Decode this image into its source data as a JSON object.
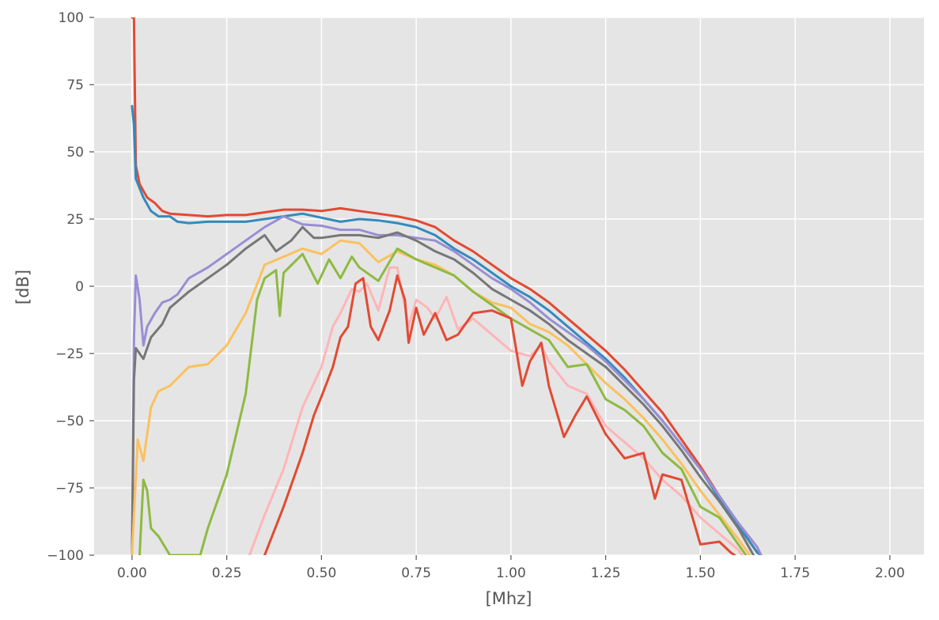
{
  "chart_data": {
    "type": "line",
    "title": "",
    "xlabel": "[Mhz]",
    "ylabel": "[dB]",
    "xlim": [
      -0.1,
      2.09
    ],
    "ylim": [
      -100,
      100
    ],
    "x_ticks": [
      0.0,
      0.25,
      0.5,
      0.75,
      1.0,
      1.25,
      1.5,
      1.75,
      2.0
    ],
    "x_tick_labels": [
      "0.00",
      "0.25",
      "0.50",
      "0.75",
      "1.00",
      "1.25",
      "1.50",
      "1.75",
      "2.00"
    ],
    "y_ticks": [
      -100,
      -75,
      -50,
      -25,
      0,
      25,
      50,
      75,
      100
    ],
    "y_tick_labels": [
      "−100",
      "−75",
      "−50",
      "−25",
      "0",
      "25",
      "50",
      "75",
      "100"
    ],
    "grid": true,
    "background": "#e5e5e5",
    "grid_color": "#ffffff",
    "legend": "none",
    "series": [
      {
        "color": "#e24a33",
        "points": [
          [
            0.0,
            100
          ],
          [
            0.005,
            100
          ],
          [
            0.01,
            45
          ],
          [
            0.02,
            38
          ],
          [
            0.04,
            33
          ],
          [
            0.06,
            31
          ],
          [
            0.08,
            28
          ],
          [
            0.1,
            27
          ],
          [
            0.15,
            26.5
          ],
          [
            0.2,
            26
          ],
          [
            0.25,
            26.5
          ],
          [
            0.3,
            26.5
          ],
          [
            0.35,
            27.5
          ],
          [
            0.4,
            28.5
          ],
          [
            0.45,
            28.5
          ],
          [
            0.5,
            28
          ],
          [
            0.55,
            29
          ],
          [
            0.6,
            28
          ],
          [
            0.65,
            27
          ],
          [
            0.7,
            26
          ],
          [
            0.75,
            24.5
          ],
          [
            0.8,
            22
          ],
          [
            0.85,
            17
          ],
          [
            0.9,
            13
          ],
          [
            0.95,
            8
          ],
          [
            1.0,
            3
          ],
          [
            1.05,
            -1
          ],
          [
            1.1,
            -6
          ],
          [
            1.15,
            -12
          ],
          [
            1.2,
            -18
          ],
          [
            1.25,
            -24
          ],
          [
            1.3,
            -31
          ],
          [
            1.35,
            -39
          ],
          [
            1.4,
            -47
          ],
          [
            1.45,
            -57
          ],
          [
            1.5,
            -67
          ],
          [
            1.55,
            -78
          ],
          [
            1.6,
            -89
          ],
          [
            1.65,
            -99
          ],
          [
            1.66,
            -100
          ]
        ]
      },
      {
        "color": "#348abd",
        "points": [
          [
            0.0,
            67
          ],
          [
            0.005,
            60
          ],
          [
            0.01,
            40
          ],
          [
            0.03,
            33
          ],
          [
            0.05,
            28
          ],
          [
            0.07,
            26
          ],
          [
            0.1,
            26
          ],
          [
            0.12,
            24
          ],
          [
            0.15,
            23.5
          ],
          [
            0.2,
            24
          ],
          [
            0.25,
            24
          ],
          [
            0.3,
            24
          ],
          [
            0.35,
            25
          ],
          [
            0.4,
            26
          ],
          [
            0.45,
            27
          ],
          [
            0.5,
            25.5
          ],
          [
            0.55,
            24
          ],
          [
            0.6,
            25
          ],
          [
            0.65,
            24.5
          ],
          [
            0.7,
            23.5
          ],
          [
            0.75,
            22
          ],
          [
            0.8,
            19
          ],
          [
            0.85,
            14
          ],
          [
            0.9,
            10
          ],
          [
            0.95,
            5
          ],
          [
            1.0,
            0
          ],
          [
            1.05,
            -4
          ],
          [
            1.1,
            -9
          ],
          [
            1.15,
            -15
          ],
          [
            1.2,
            -21
          ],
          [
            1.25,
            -27
          ],
          [
            1.3,
            -34
          ],
          [
            1.35,
            -42
          ],
          [
            1.4,
            -50
          ],
          [
            1.45,
            -59
          ],
          [
            1.5,
            -68
          ],
          [
            1.55,
            -79
          ],
          [
            1.6,
            -89
          ],
          [
            1.65,
            -99
          ],
          [
            1.66,
            -100
          ]
        ]
      },
      {
        "color": "#988ed5",
        "points": [
          [
            0.0,
            -100
          ],
          [
            0.005,
            -20
          ],
          [
            0.01,
            4
          ],
          [
            0.02,
            -5
          ],
          [
            0.03,
            -22
          ],
          [
            0.04,
            -15
          ],
          [
            0.06,
            -10
          ],
          [
            0.08,
            -6
          ],
          [
            0.1,
            -5
          ],
          [
            0.12,
            -3
          ],
          [
            0.15,
            3
          ],
          [
            0.2,
            7
          ],
          [
            0.25,
            12
          ],
          [
            0.3,
            17
          ],
          [
            0.35,
            22
          ],
          [
            0.4,
            26
          ],
          [
            0.45,
            23
          ],
          [
            0.5,
            22.5
          ],
          [
            0.55,
            21
          ],
          [
            0.6,
            21
          ],
          [
            0.65,
            19
          ],
          [
            0.7,
            19
          ],
          [
            0.75,
            18
          ],
          [
            0.8,
            17
          ],
          [
            0.85,
            13
          ],
          [
            0.9,
            8
          ],
          [
            0.95,
            3
          ],
          [
            1.0,
            -1
          ],
          [
            1.05,
            -6
          ],
          [
            1.1,
            -12
          ],
          [
            1.15,
            -17
          ],
          [
            1.2,
            -22
          ],
          [
            1.25,
            -28
          ],
          [
            1.3,
            -35
          ],
          [
            1.35,
            -42
          ],
          [
            1.4,
            -50
          ],
          [
            1.45,
            -59
          ],
          [
            1.5,
            -68
          ],
          [
            1.55,
            -78
          ],
          [
            1.6,
            -88
          ],
          [
            1.65,
            -97
          ],
          [
            1.66,
            -100
          ]
        ]
      },
      {
        "color": "#777777",
        "points": [
          [
            0.0,
            -100
          ],
          [
            0.005,
            -35
          ],
          [
            0.01,
            -23
          ],
          [
            0.03,
            -27
          ],
          [
            0.05,
            -19
          ],
          [
            0.08,
            -14
          ],
          [
            0.1,
            -8
          ],
          [
            0.15,
            -2
          ],
          [
            0.2,
            3
          ],
          [
            0.25,
            8
          ],
          [
            0.3,
            14
          ],
          [
            0.35,
            19
          ],
          [
            0.38,
            13
          ],
          [
            0.42,
            17
          ],
          [
            0.45,
            22
          ],
          [
            0.48,
            18
          ],
          [
            0.5,
            18
          ],
          [
            0.55,
            19
          ],
          [
            0.6,
            19
          ],
          [
            0.65,
            18
          ],
          [
            0.7,
            20
          ],
          [
            0.75,
            17
          ],
          [
            0.8,
            13
          ],
          [
            0.85,
            10
          ],
          [
            0.9,
            5
          ],
          [
            0.95,
            -1
          ],
          [
            1.0,
            -5
          ],
          [
            1.05,
            -9
          ],
          [
            1.1,
            -14
          ],
          [
            1.15,
            -20
          ],
          [
            1.2,
            -25
          ],
          [
            1.25,
            -30
          ],
          [
            1.3,
            -37
          ],
          [
            1.35,
            -44
          ],
          [
            1.4,
            -52
          ],
          [
            1.45,
            -61
          ],
          [
            1.5,
            -71
          ],
          [
            1.55,
            -80
          ],
          [
            1.6,
            -90
          ],
          [
            1.64,
            -100
          ]
        ]
      },
      {
        "color": "#fbc15e",
        "points": [
          [
            0.0,
            -100
          ],
          [
            0.015,
            -57
          ],
          [
            0.03,
            -65
          ],
          [
            0.05,
            -45
          ],
          [
            0.07,
            -39
          ],
          [
            0.1,
            -37
          ],
          [
            0.15,
            -30
          ],
          [
            0.2,
            -29
          ],
          [
            0.25,
            -22
          ],
          [
            0.3,
            -10
          ],
          [
            0.35,
            8
          ],
          [
            0.4,
            11
          ],
          [
            0.45,
            14
          ],
          [
            0.5,
            12
          ],
          [
            0.55,
            17
          ],
          [
            0.6,
            16
          ],
          [
            0.65,
            9
          ],
          [
            0.7,
            13
          ],
          [
            0.75,
            10
          ],
          [
            0.8,
            8
          ],
          [
            0.85,
            4
          ],
          [
            0.9,
            -2
          ],
          [
            0.95,
            -6
          ],
          [
            1.0,
            -8
          ],
          [
            1.05,
            -14
          ],
          [
            1.1,
            -17
          ],
          [
            1.15,
            -22
          ],
          [
            1.2,
            -29
          ],
          [
            1.25,
            -36
          ],
          [
            1.3,
            -42
          ],
          [
            1.35,
            -49
          ],
          [
            1.4,
            -57
          ],
          [
            1.45,
            -66
          ],
          [
            1.5,
            -76
          ],
          [
            1.55,
            -85
          ],
          [
            1.6,
            -94
          ],
          [
            1.63,
            -100
          ]
        ]
      },
      {
        "color": "#8eba42",
        "points": [
          [
            0.02,
            -100
          ],
          [
            0.03,
            -72
          ],
          [
            0.04,
            -76
          ],
          [
            0.05,
            -90
          ],
          [
            0.07,
            -93
          ],
          [
            0.1,
            -100
          ],
          [
            0.18,
            -100
          ],
          [
            0.2,
            -90
          ],
          [
            0.25,
            -70
          ],
          [
            0.3,
            -40
          ],
          [
            0.33,
            -5
          ],
          [
            0.35,
            3
          ],
          [
            0.38,
            6
          ],
          [
            0.39,
            -11
          ],
          [
            0.4,
            5
          ],
          [
            0.45,
            12
          ],
          [
            0.49,
            1
          ],
          [
            0.52,
            10
          ],
          [
            0.55,
            3
          ],
          [
            0.58,
            11
          ],
          [
            0.6,
            7
          ],
          [
            0.65,
            2
          ],
          [
            0.7,
            14
          ],
          [
            0.75,
            10
          ],
          [
            0.8,
            7
          ],
          [
            0.85,
            4
          ],
          [
            0.9,
            -2
          ],
          [
            0.95,
            -7
          ],
          [
            1.0,
            -12
          ],
          [
            1.05,
            -16
          ],
          [
            1.1,
            -20
          ],
          [
            1.15,
            -30
          ],
          [
            1.2,
            -29
          ],
          [
            1.25,
            -42
          ],
          [
            1.3,
            -46
          ],
          [
            1.35,
            -52
          ],
          [
            1.4,
            -62
          ],
          [
            1.45,
            -68
          ],
          [
            1.5,
            -82
          ],
          [
            1.55,
            -86
          ],
          [
            1.6,
            -96
          ],
          [
            1.62,
            -100
          ]
        ]
      },
      {
        "color": "#ffb5b8",
        "points": [
          [
            0.31,
            -100
          ],
          [
            0.35,
            -85
          ],
          [
            0.4,
            -68
          ],
          [
            0.45,
            -45
          ],
          [
            0.5,
            -30
          ],
          [
            0.53,
            -15
          ],
          [
            0.55,
            -10
          ],
          [
            0.58,
            -1
          ],
          [
            0.6,
            -2
          ],
          [
            0.62,
            1
          ],
          [
            0.65,
            -9
          ],
          [
            0.68,
            7
          ],
          [
            0.7,
            7
          ],
          [
            0.73,
            -15
          ],
          [
            0.75,
            -5
          ],
          [
            0.78,
            -8
          ],
          [
            0.8,
            -12
          ],
          [
            0.83,
            -4
          ],
          [
            0.86,
            -16
          ],
          [
            0.9,
            -12
          ],
          [
            0.95,
            -18
          ],
          [
            1.0,
            -24
          ],
          [
            1.05,
            -26
          ],
          [
            1.08,
            -22
          ],
          [
            1.1,
            -28
          ],
          [
            1.15,
            -37
          ],
          [
            1.2,
            -40
          ],
          [
            1.25,
            -52
          ],
          [
            1.3,
            -58
          ],
          [
            1.35,
            -64
          ],
          [
            1.4,
            -72
          ],
          [
            1.45,
            -78
          ],
          [
            1.5,
            -86
          ],
          [
            1.55,
            -92
          ],
          [
            1.6,
            -98
          ],
          [
            1.61,
            -100
          ]
        ]
      },
      {
        "color": "#e24a33",
        "points": [
          [
            0.35,
            -100
          ],
          [
            0.4,
            -82
          ],
          [
            0.45,
            -62
          ],
          [
            0.48,
            -48
          ],
          [
            0.5,
            -41
          ],
          [
            0.53,
            -30
          ],
          [
            0.55,
            -19
          ],
          [
            0.57,
            -15
          ],
          [
            0.59,
            1
          ],
          [
            0.61,
            3
          ],
          [
            0.63,
            -15
          ],
          [
            0.65,
            -20
          ],
          [
            0.68,
            -9
          ],
          [
            0.7,
            4
          ],
          [
            0.72,
            -5
          ],
          [
            0.73,
            -21
          ],
          [
            0.75,
            -8
          ],
          [
            0.77,
            -18
          ],
          [
            0.8,
            -10
          ],
          [
            0.83,
            -20
          ],
          [
            0.86,
            -18
          ],
          [
            0.9,
            -10
          ],
          [
            0.95,
            -9
          ],
          [
            1.0,
            -12
          ],
          [
            1.03,
            -37
          ],
          [
            1.05,
            -28
          ],
          [
            1.08,
            -21
          ],
          [
            1.1,
            -37
          ],
          [
            1.14,
            -56
          ],
          [
            1.17,
            -48
          ],
          [
            1.2,
            -41
          ],
          [
            1.25,
            -55
          ],
          [
            1.3,
            -64
          ],
          [
            1.35,
            -62
          ],
          [
            1.38,
            -79
          ],
          [
            1.4,
            -70
          ],
          [
            1.45,
            -72
          ],
          [
            1.5,
            -96
          ],
          [
            1.55,
            -95
          ],
          [
            1.58,
            -99
          ],
          [
            1.59,
            -100
          ]
        ]
      }
    ]
  }
}
